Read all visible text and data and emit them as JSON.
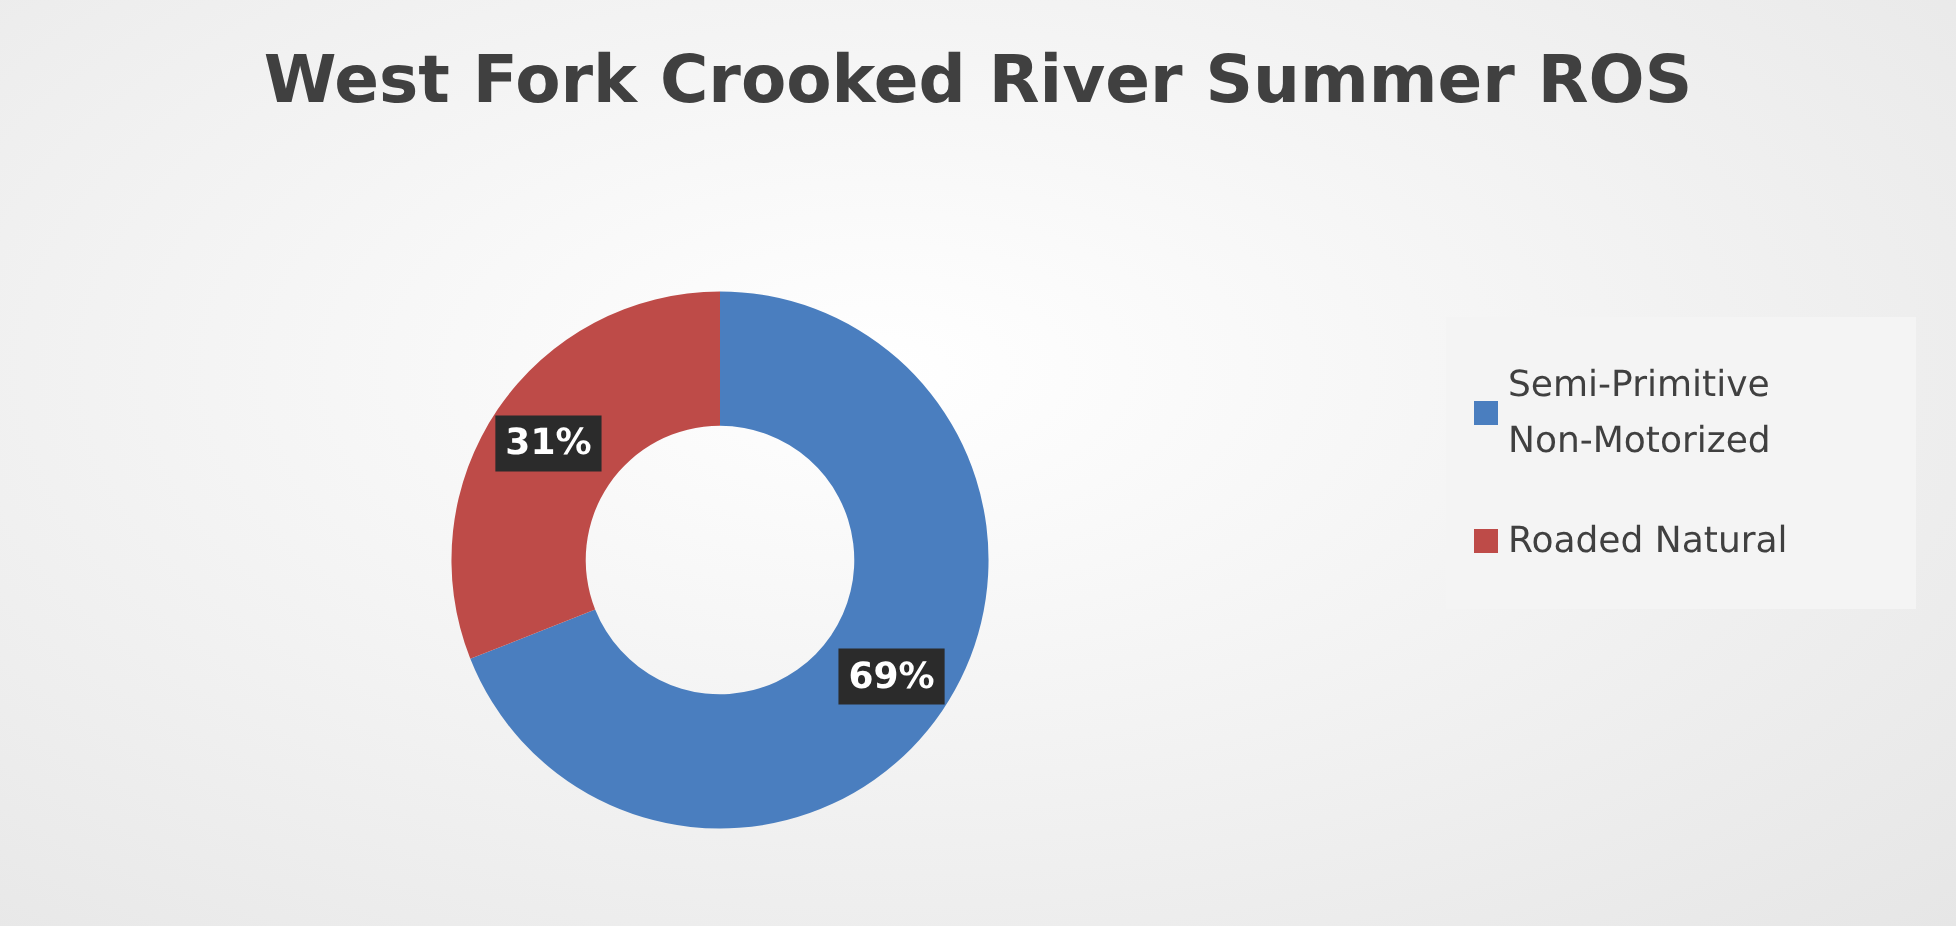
{
  "chart_data": {
    "type": "donut",
    "title": "West Fork Crooked River Summer ROS",
    "categories": [
      "Semi-Primitive Non-Motorized",
      "Roaded Natural"
    ],
    "values": [
      69,
      31
    ],
    "colors": [
      "#4a7ebf",
      "#be4b48"
    ],
    "value_labels": [
      "69%",
      "31%"
    ],
    "legend": "right"
  }
}
